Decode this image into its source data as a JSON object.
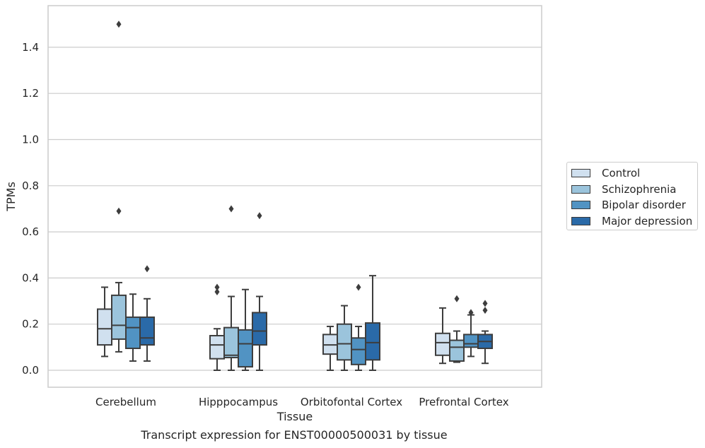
{
  "chart_data": {
    "type": "box",
    "xlabel": "Tissue",
    "ylabel": "TPMs",
    "caption": "Transcript expression for ENST00000500031 by tissue",
    "ylim": [
      -0.07,
      1.58
    ],
    "yticks": [
      "0.0",
      "0.2",
      "0.4",
      "0.6",
      "0.8",
      "1.0",
      "1.2",
      "1.4"
    ],
    "grid": "horizontal",
    "legend_position": "right",
    "categories": [
      "Cerebellum",
      "Hipppocampus",
      "Orbitofontal Cortex",
      "Prefrontal Cortex"
    ],
    "series": [
      {
        "name": "Control",
        "color": "#d0e0ef",
        "boxes": [
          {
            "whisker_low": 0.06,
            "q1": 0.11,
            "median": 0.18,
            "q3": 0.265,
            "whisker_high": 0.36,
            "outliers": []
          },
          {
            "whisker_low": 0.0,
            "q1": 0.05,
            "median": 0.11,
            "q3": 0.15,
            "whisker_high": 0.18,
            "outliers": [
              0.36,
              0.34
            ]
          },
          {
            "whisker_low": 0.0,
            "q1": 0.07,
            "median": 0.11,
            "q3": 0.155,
            "whisker_high": 0.19,
            "outliers": []
          },
          {
            "whisker_low": 0.03,
            "q1": 0.065,
            "median": 0.12,
            "q3": 0.16,
            "whisker_high": 0.27,
            "outliers": []
          }
        ]
      },
      {
        "name": "Schizophrenia",
        "color": "#9bc4dc",
        "boxes": [
          {
            "whisker_low": 0.08,
            "q1": 0.135,
            "median": 0.195,
            "q3": 0.325,
            "whisker_high": 0.38,
            "outliers": [
              1.5,
              0.69
            ]
          },
          {
            "whisker_low": 0.0,
            "q1": 0.055,
            "median": 0.065,
            "q3": 0.185,
            "whisker_high": 0.32,
            "outliers": [
              0.7
            ]
          },
          {
            "whisker_low": 0.0,
            "q1": 0.045,
            "median": 0.115,
            "q3": 0.2,
            "whisker_high": 0.28,
            "outliers": []
          },
          {
            "whisker_low": 0.035,
            "q1": 0.04,
            "median": 0.1,
            "q3": 0.13,
            "whisker_high": 0.17,
            "outliers": [
              0.31
            ]
          }
        ]
      },
      {
        "name": "Bipolar disorder",
        "color": "#5193c3",
        "boxes": [
          {
            "whisker_low": 0.04,
            "q1": 0.095,
            "median": 0.185,
            "q3": 0.23,
            "whisker_high": 0.33,
            "outliers": []
          },
          {
            "whisker_low": 0.0,
            "q1": 0.015,
            "median": 0.115,
            "q3": 0.175,
            "whisker_high": 0.35,
            "outliers": []
          },
          {
            "whisker_low": 0.0,
            "q1": 0.025,
            "median": 0.09,
            "q3": 0.14,
            "whisker_high": 0.19,
            "outliers": [
              0.36
            ]
          },
          {
            "whisker_low": 0.06,
            "q1": 0.1,
            "median": 0.115,
            "q3": 0.155,
            "whisker_high": 0.24,
            "outliers": [
              0.25
            ]
          }
        ]
      },
      {
        "name": "Major depression",
        "color": "#2a6aa8",
        "boxes": [
          {
            "whisker_low": 0.04,
            "q1": 0.11,
            "median": 0.14,
            "q3": 0.23,
            "whisker_high": 0.31,
            "outliers": [
              0.44
            ]
          },
          {
            "whisker_low": 0.0,
            "q1": 0.11,
            "median": 0.17,
            "q3": 0.25,
            "whisker_high": 0.32,
            "outliers": [
              0.67
            ]
          },
          {
            "whisker_low": 0.0,
            "q1": 0.045,
            "median": 0.12,
            "q3": 0.205,
            "whisker_high": 0.41,
            "outliers": []
          },
          {
            "whisker_low": 0.03,
            "q1": 0.095,
            "median": 0.125,
            "q3": 0.155,
            "whisker_high": 0.17,
            "outliers": [
              0.29,
              0.26
            ]
          }
        ]
      }
    ]
  }
}
